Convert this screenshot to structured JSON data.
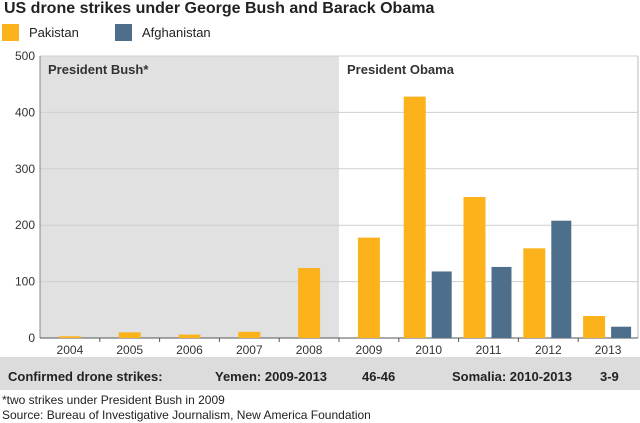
{
  "chart_data": {
    "type": "bar",
    "title": "US drone strikes under George Bush and Barack Obama",
    "categories": [
      "2004",
      "2005",
      "2006",
      "2007",
      "2008",
      "2009",
      "2010",
      "2011",
      "2012",
      "2013"
    ],
    "series": [
      {
        "name": "Pakistan",
        "color": "#fbb21b",
        "values": [
          3,
          10,
          6,
          11,
          124,
          178,
          428,
          250,
          159,
          39
        ]
      },
      {
        "name": "Afghanistan",
        "color": "#4d6f8c",
        "values": [
          null,
          null,
          null,
          null,
          null,
          null,
          118,
          126,
          208,
          20
        ]
      }
    ],
    "ylim": [
      0,
      500
    ],
    "yticks": [
      0,
      100,
      200,
      300,
      400,
      500
    ],
    "grid": true,
    "legend_position": "top-left",
    "regions": [
      {
        "label": "President Bush*",
        "from": "2004",
        "to": "2008",
        "color": "#e1e1e1"
      },
      {
        "label": "President Obama",
        "from": "2009",
        "to": "2013",
        "color": "#ffffff"
      }
    ]
  },
  "band": {
    "confirmed": "Confirmed drone strikes:",
    "yemen": "Yemen: 2009-2013",
    "yemen_range": "46-46",
    "somalia": "Somalia: 2010-2013",
    "somalia_range": "3-9"
  },
  "footnote": "*two strikes under President Bush in 2009",
  "source": "Source: Bureau of Investigative Journalism, New America Foundation"
}
